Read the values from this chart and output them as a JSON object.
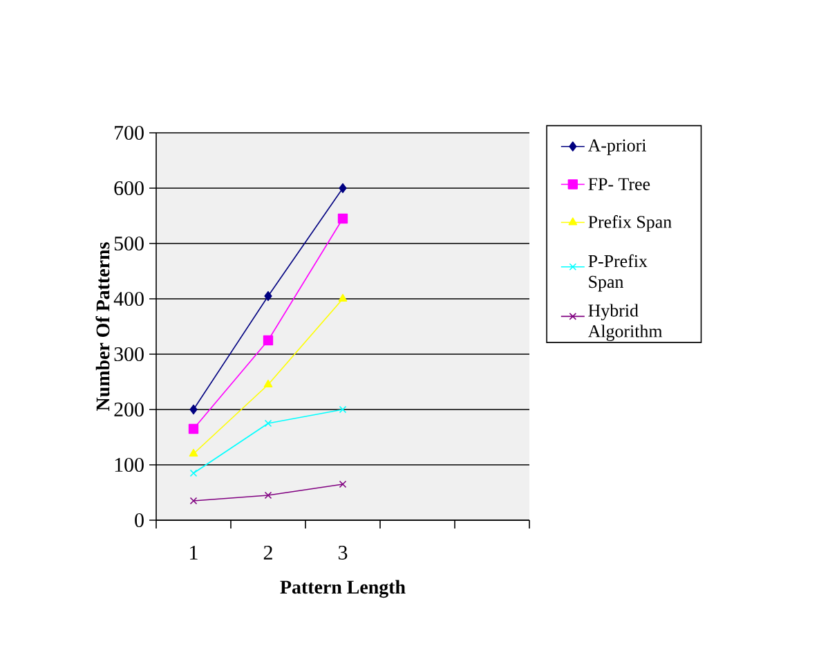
{
  "chart_data": {
    "type": "line",
    "xlabel": "Pattern Length",
    "ylabel": "Number Of Patterns",
    "categories": [
      "1",
      "2",
      "3",
      null,
      null
    ],
    "series": [
      {
        "name": "A-priori",
        "color": "#000080",
        "marker": "diamond",
        "values": [
          200,
          405,
          600,
          null,
          null
        ]
      },
      {
        "name": "FP- Tree",
        "color": "#ff00ff",
        "marker": "square",
        "values": [
          165,
          325,
          545,
          null,
          null
        ]
      },
      {
        "name": "Prefix Span",
        "color": "#ffff00",
        "marker": "triangle",
        "values": [
          120,
          245,
          400,
          null,
          null
        ]
      },
      {
        "name": "P-Prefix Span",
        "color": "#00ffff",
        "marker": "cross",
        "values": [
          85,
          175,
          200,
          null,
          null
        ]
      },
      {
        "name": "Hybrid Algorithm",
        "color": "#800080",
        "marker": "cross",
        "values": [
          35,
          45,
          65,
          null,
          null
        ]
      }
    ],
    "ylim": [
      0,
      700
    ],
    "yticks": [
      0,
      100,
      200,
      300,
      400,
      500,
      600,
      700
    ],
    "grid": "y",
    "legend": "right",
    "line_style": "solid"
  }
}
